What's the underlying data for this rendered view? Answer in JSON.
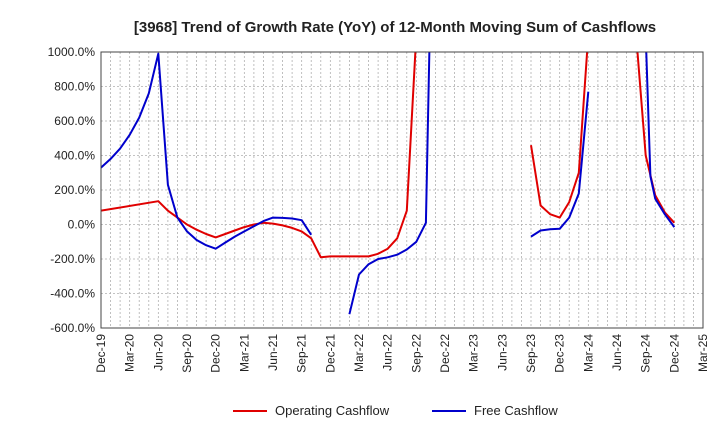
{
  "chart_data": {
    "type": "line",
    "title": "[3968]  Trend of Growth Rate (YoY) of 12-Month Moving Sum of Cashflows",
    "xlabel": "",
    "ylabel": "",
    "ylim": [
      -600,
      1000
    ],
    "y_ticks": [
      1000,
      800,
      600,
      400,
      200,
      0,
      -200,
      -400,
      -600
    ],
    "y_tick_labels": [
      "1000.0%",
      "800.0%",
      "600.0%",
      "400.0%",
      "200.0%",
      "0.0%",
      "-200.0%",
      "-400.0%",
      "-600.0%"
    ],
    "x_tick_labels": [
      "Dec-19",
      "Mar-20",
      "Jun-20",
      "Sep-20",
      "Dec-20",
      "Mar-21",
      "Jun-21",
      "Sep-21",
      "Dec-21",
      "Mar-22",
      "Jun-22",
      "Sep-22",
      "Dec-22",
      "Mar-23",
      "Jun-23",
      "Sep-23",
      "Dec-23",
      "Mar-24",
      "Jun-24",
      "Sep-24",
      "Dec-24",
      "Mar-25"
    ],
    "grid": true,
    "legend_position": "bottom",
    "series": [
      {
        "name": "Operating Cashflow",
        "color": "#e00000",
        "points": [
          [
            0,
            80
          ],
          [
            6,
            135
          ],
          [
            7,
            80
          ],
          [
            8,
            40
          ],
          [
            9,
            0
          ],
          [
            10,
            -30
          ],
          [
            11,
            -55
          ],
          [
            12,
            -75
          ],
          [
            13,
            -55
          ],
          [
            14,
            -35
          ],
          [
            15,
            -15
          ],
          [
            16,
            0
          ],
          [
            17,
            10
          ],
          [
            18,
            5
          ],
          [
            19,
            -5
          ],
          [
            20,
            -20
          ],
          [
            21,
            -40
          ],
          [
            22,
            -80
          ],
          [
            23,
            -190
          ],
          [
            24,
            -185
          ],
          [
            25,
            -185
          ],
          [
            26,
            -185
          ],
          [
            27,
            -185
          ],
          [
            28,
            -185
          ],
          [
            29,
            -170
          ],
          [
            30,
            -140
          ],
          [
            31,
            -80
          ],
          [
            32,
            80
          ],
          [
            33,
            1100
          ],
          null,
          [
            45,
            460
          ],
          [
            46,
            110
          ],
          [
            47,
            60
          ],
          [
            48,
            40
          ],
          [
            49,
            130
          ],
          [
            50,
            300
          ],
          [
            51,
            1100
          ],
          null,
          [
            56,
            1100
          ],
          [
            57,
            400
          ],
          [
            58,
            170
          ],
          [
            59,
            70
          ],
          [
            60,
            10
          ]
        ]
      },
      {
        "name": "Free Cashflow",
        "color": "#0000cc",
        "points": [
          [
            0,
            330
          ],
          [
            1,
            380
          ],
          [
            2,
            440
          ],
          [
            3,
            520
          ],
          [
            4,
            620
          ],
          [
            5,
            760
          ],
          [
            6,
            990
          ],
          [
            7,
            230
          ],
          [
            8,
            40
          ],
          [
            9,
            -40
          ],
          [
            10,
            -90
          ],
          [
            11,
            -120
          ],
          [
            12,
            -140
          ],
          [
            13,
            -105
          ],
          [
            14,
            -70
          ],
          [
            15,
            -40
          ],
          [
            16,
            -10
          ],
          [
            17,
            20
          ],
          [
            18,
            40
          ],
          [
            19,
            38
          ],
          [
            20,
            35
          ],
          [
            21,
            25
          ],
          [
            22,
            -60
          ],
          null,
          [
            26,
            -520
          ],
          [
            27,
            -290
          ],
          [
            28,
            -230
          ],
          [
            29,
            -200
          ],
          [
            30,
            -190
          ],
          [
            31,
            -175
          ],
          [
            32,
            -145
          ],
          [
            33,
            -100
          ],
          [
            34,
            10
          ],
          [
            34.4,
            1100
          ],
          null,
          [
            45,
            -70
          ],
          [
            46,
            -35
          ],
          [
            47,
            -28
          ],
          [
            48,
            -25
          ],
          [
            49,
            40
          ],
          [
            50,
            180
          ],
          [
            51,
            770
          ],
          null,
          [
            57,
            1100
          ],
          [
            57.5,
            280
          ],
          [
            58,
            150
          ],
          [
            59,
            60
          ],
          [
            60,
            -15
          ]
        ]
      }
    ]
  }
}
